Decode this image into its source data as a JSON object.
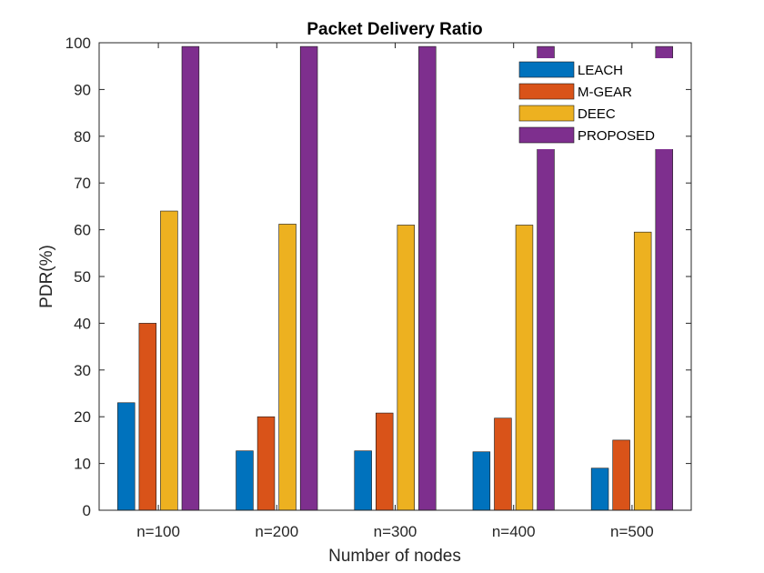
{
  "chart_data": {
    "type": "bar",
    "title": "Packet Delivery Ratio",
    "xlabel": "Number of nodes",
    "ylabel": "PDR(%)",
    "categories": [
      "n=100",
      "n=200",
      "n=300",
      "n=400",
      "n=500"
    ],
    "ylim": [
      0,
      100
    ],
    "yticks": [
      0,
      10,
      20,
      30,
      40,
      50,
      60,
      70,
      80,
      90,
      100
    ],
    "grid": false,
    "legend_position": "top-right",
    "series": [
      {
        "name": "LEACH",
        "color": "#0072BD",
        "values": [
          23,
          12.7,
          12.7,
          12.5,
          9
        ]
      },
      {
        "name": "M-GEAR",
        "color": "#D95319",
        "values": [
          40,
          20,
          20.8,
          19.7,
          15
        ]
      },
      {
        "name": "DEEC",
        "color": "#EDB120",
        "values": [
          64,
          61.2,
          61,
          61,
          59.5
        ]
      },
      {
        "name": "PROPOSED",
        "color": "#7E2F8E",
        "values": [
          99.2,
          99.2,
          99.2,
          99.2,
          99.2
        ]
      }
    ]
  }
}
